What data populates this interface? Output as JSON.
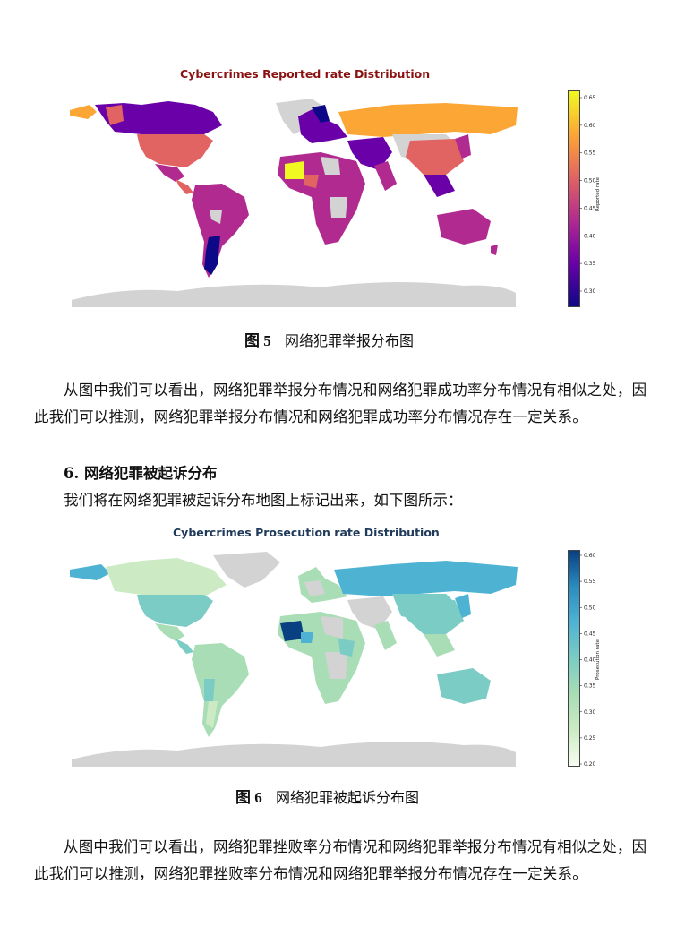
{
  "figure5": {
    "title": "Cybercrimes Reported rate Distribution",
    "title_color": "#8b1010",
    "caption_num": "图 5",
    "caption_text": "网络犯罪举报分布图",
    "colorbar": {
      "label": "Reported rate",
      "ticks": [
        "0.65",
        "0.60",
        "0.55",
        "0.50",
        "0.45",
        "0.40",
        "0.35",
        "0.30"
      ],
      "colors": [
        "#f0f921",
        "#fca636",
        "#e16462",
        "#b12a90",
        "#6a00a8",
        "#0d0887"
      ]
    }
  },
  "paragraph1": "从图中我们可以看出，网络犯罪举报分布情况和网络犯罪成功率分布情况有相似之处，因此我们可以推测，网络犯罪举报分布情况和网络犯罪成功率分布情况存在一定关系。",
  "section6": {
    "heading": "6. 网络犯罪被起诉分布",
    "intro": "我们将在网络犯罪被起诉分布地图上标记出来，如下图所示："
  },
  "figure6": {
    "title": "Cybercrimes Prosecution rate Distribution",
    "title_color": "#1f3a5a",
    "caption_num": "图 6",
    "caption_text": "网络犯罪被起诉分布图",
    "colorbar": {
      "label": "Prosecution rate",
      "ticks": [
        "0.60",
        "0.55",
        "0.50",
        "0.45",
        "0.40",
        "0.35",
        "0.30",
        "0.25",
        "0.20"
      ],
      "colors": [
        "#084081",
        "#2b8cbe",
        "#4eb3d3",
        "#7bccc4",
        "#a8ddb5",
        "#ccebc5",
        "#f7fcf0"
      ]
    }
  },
  "paragraph2": "从图中我们可以看出，网络犯罪挫败率分布情况和网络犯罪举报分布情况有相似之处，因此我们可以推测，网络犯罪挫败率分布情况和网络犯罪举报分布情况存在一定关系。"
}
